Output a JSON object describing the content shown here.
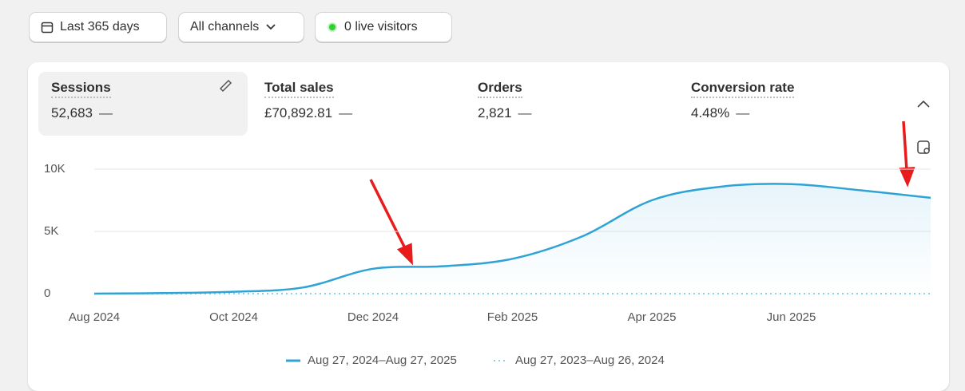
{
  "toolbar": {
    "date_range": "Last 365 days",
    "channels": "All channels",
    "live": "0 live visitors"
  },
  "metrics": [
    {
      "label": "Sessions",
      "value": "52,683",
      "change": "—"
    },
    {
      "label": "Total sales",
      "value": "£70,892.81",
      "change": "—"
    },
    {
      "label": "Orders",
      "value": "2,821",
      "change": "—"
    },
    {
      "label": "Conversion rate",
      "value": "4.48%",
      "change": "—"
    }
  ],
  "chart_data": {
    "type": "line",
    "categories": [
      "Aug 2024",
      null,
      "Oct 2024",
      null,
      "Dec 2024",
      null,
      "Feb 2025",
      null,
      "Apr 2025",
      null,
      "Jun 2025",
      null,
      null
    ],
    "series": [
      {
        "name": "Aug 27, 2024–Aug 27, 2025",
        "color": "#2fa3d6",
        "values": [
          0,
          50,
          150,
          500,
          2000,
          2200,
          2800,
          4600,
          7500,
          8600,
          8800,
          8300,
          7700
        ]
      },
      {
        "name": "Aug 27, 2023–Aug 26, 2024",
        "color": "#8ccfe6",
        "dashed": true,
        "values": [
          0,
          0,
          0,
          0,
          0,
          0,
          0,
          0,
          0,
          0,
          0,
          0,
          0
        ]
      }
    ],
    "ylim": [
      0,
      10000
    ],
    "yticks": [
      {
        "value": 0,
        "label": "0"
      },
      {
        "value": 5000,
        "label": "5K"
      },
      {
        "value": 10000,
        "label": "10K"
      }
    ],
    "grid": true
  }
}
